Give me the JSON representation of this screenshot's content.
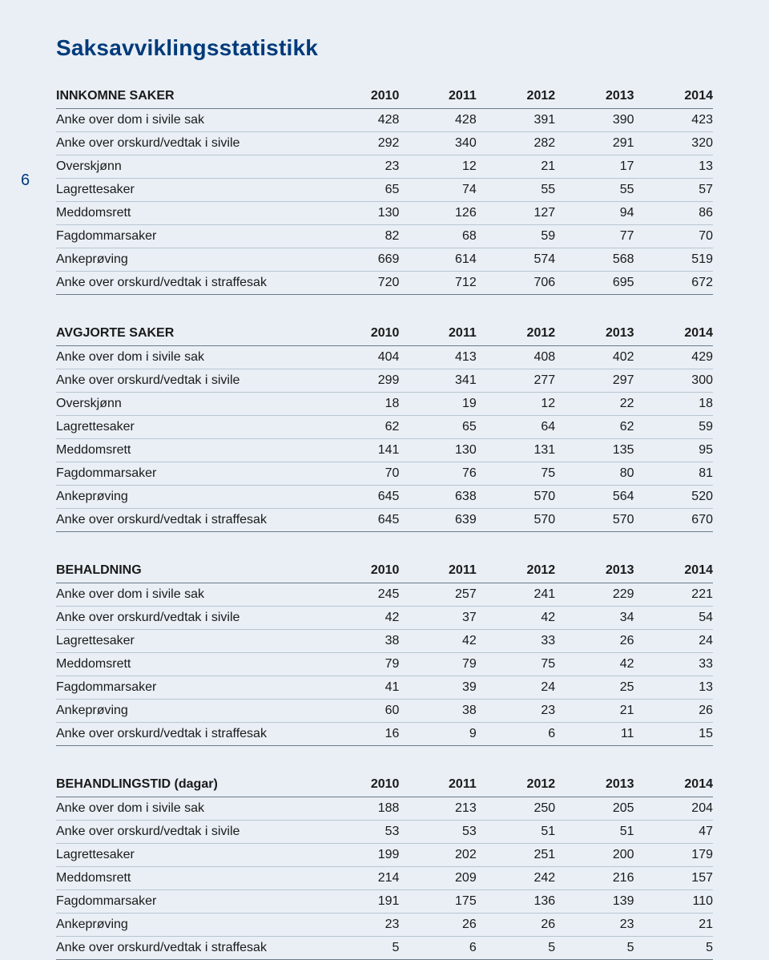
{
  "page_number": "6",
  "title": "Saksavviklingsstatistikk",
  "years": [
    "2010",
    "2011",
    "2012",
    "2013",
    "2014"
  ],
  "tables": [
    {
      "header": "INNKOMNE SAKER",
      "rows": [
        {
          "label": "Anke over dom i sivile sak",
          "v": [
            "428",
            "428",
            "391",
            "390",
            "423"
          ]
        },
        {
          "label": "Anke over orskurd/vedtak i sivile",
          "v": [
            "292",
            "340",
            "282",
            "291",
            "320"
          ]
        },
        {
          "label": "Overskjønn",
          "v": [
            "23",
            "12",
            "21",
            "17",
            "13"
          ]
        },
        {
          "label": "Lagrettesaker",
          "v": [
            "65",
            "74",
            "55",
            "55",
            "57"
          ]
        },
        {
          "label": "Meddomsrett",
          "v": [
            "130",
            "126",
            "127",
            "94",
            "86"
          ]
        },
        {
          "label": "Fagdommarsaker",
          "v": [
            "82",
            "68",
            "59",
            "77",
            "70"
          ]
        },
        {
          "label": "Ankeprøving",
          "v": [
            "669",
            "614",
            "574",
            "568",
            "519"
          ]
        },
        {
          "label": "Anke over orskurd/vedtak i straffesak",
          "v": [
            "720",
            "712",
            "706",
            "695",
            "672"
          ]
        }
      ]
    },
    {
      "header": "AVGJORTE SAKER",
      "rows": [
        {
          "label": "Anke over dom i sivile sak",
          "v": [
            "404",
            "413",
            "408",
            "402",
            "429"
          ]
        },
        {
          "label": "Anke over orskurd/vedtak i sivile",
          "v": [
            "299",
            "341",
            "277",
            "297",
            "300"
          ]
        },
        {
          "label": "Overskjønn",
          "v": [
            "18",
            "19",
            "12",
            "22",
            "18"
          ]
        },
        {
          "label": "Lagrettesaker",
          "v": [
            "62",
            "65",
            "64",
            "62",
            "59"
          ]
        },
        {
          "label": "Meddomsrett",
          "v": [
            "141",
            "130",
            "131",
            "135",
            "95"
          ]
        },
        {
          "label": "Fagdommarsaker",
          "v": [
            "70",
            "76",
            "75",
            "80",
            "81"
          ]
        },
        {
          "label": "Ankeprøving",
          "v": [
            "645",
            "638",
            "570",
            "564",
            "520"
          ]
        },
        {
          "label": "Anke over orskurd/vedtak i straffesak",
          "v": [
            "645",
            "639",
            "570",
            "570",
            "670"
          ]
        }
      ]
    },
    {
      "header": "BEHALDNING",
      "rows": [
        {
          "label": "Anke over dom i sivile sak",
          "v": [
            "245",
            "257",
            "241",
            "229",
            "221"
          ]
        },
        {
          "label": "Anke over orskurd/vedtak i sivile",
          "v": [
            "42",
            "37",
            "42",
            "34",
            "54"
          ]
        },
        {
          "label": "Lagrettesaker",
          "v": [
            "38",
            "42",
            "33",
            "26",
            "24"
          ]
        },
        {
          "label": "Meddomsrett",
          "v": [
            "79",
            "79",
            "75",
            "42",
            "33"
          ]
        },
        {
          "label": "Fagdommarsaker",
          "v": [
            "41",
            "39",
            "24",
            "25",
            "13"
          ]
        },
        {
          "label": "Ankeprøving",
          "v": [
            "60",
            "38",
            "23",
            "21",
            "26"
          ]
        },
        {
          "label": "Anke over orskurd/vedtak i straffesak",
          "v": [
            "16",
            "9",
            "6",
            "11",
            "15"
          ]
        }
      ]
    },
    {
      "header": "BEHANDLINGSTID (dagar)",
      "rows": [
        {
          "label": "Anke over dom i sivile sak",
          "v": [
            "188",
            "213",
            "250",
            "205",
            "204"
          ]
        },
        {
          "label": "Anke over orskurd/vedtak i sivile",
          "v": [
            "53",
            "53",
            "51",
            "51",
            "47"
          ]
        },
        {
          "label": "Lagrettesaker",
          "v": [
            "199",
            "202",
            "251",
            "200",
            "179"
          ]
        },
        {
          "label": "Meddomsrett",
          "v": [
            "214",
            "209",
            "242",
            "216",
            "157"
          ]
        },
        {
          "label": "Fagdommarsaker",
          "v": [
            "191",
            "175",
            "136",
            "139",
            "110"
          ]
        },
        {
          "label": "Ankeprøving",
          "v": [
            "23",
            "26",
            "26",
            "23",
            "21"
          ]
        },
        {
          "label": "Anke over orskurd/vedtak i straffesak",
          "v": [
            "5",
            "6",
            "5",
            "5",
            "5"
          ]
        }
      ]
    }
  ]
}
